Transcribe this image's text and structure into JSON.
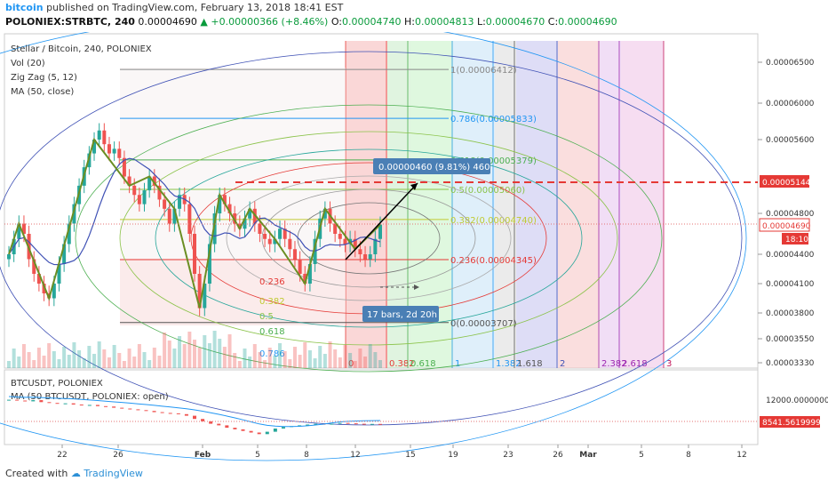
{
  "header": {
    "brand": "bitcoin",
    "published": "published on TradingView.com, February 13, 2018 18:41 EST",
    "symbol": "POLONIEX:STRBTC, 240",
    "price": "0.00004690",
    "change": "+0.00000366 (+8.46%)",
    "o_label": "O:",
    "o": "0.00004740",
    "h_label": "H:",
    "h": "0.00004813",
    "l_label": "L:",
    "l": "0.00004670",
    "c_label": "C:",
    "c": "0.00004690"
  },
  "legend": [
    "Stellar / Bitcoin, 240, POLONIEX",
    "Vol (20)",
    "Zig Zag (5, 12)",
    "MA (50, close)"
  ],
  "lower_legend": [
    "BTCUSDT, POLONIEX",
    "MA (50 BTCUSDT, POLONIEX: open)"
  ],
  "footer": {
    "created": "Created with",
    "brand": "TradingView"
  },
  "colors": {
    "up": "#26a69a",
    "down": "#ef5350",
    "accent": "#2196f3",
    "dashed": "#e53935",
    "zigzag": "#6b8e23",
    "ma": "#3f51b5"
  },
  "chart_data": {
    "type": "candlestick",
    "symbol": "STRBTC",
    "x_ticks": [
      "22",
      "26",
      "Feb",
      "5",
      "8",
      "12",
      "15",
      "19",
      "23",
      "26",
      "Mar",
      "5",
      "8",
      "12"
    ],
    "y_ticks": [
      "0.00006500",
      "0.00006000",
      "0.00005600",
      "0.00004800",
      "0.00004400",
      "0.00004100",
      "0.00003800",
      "0.00003550",
      "0.00003330"
    ],
    "price_labels": {
      "dashed": "0.00005144",
      "current": "0.00004690",
      "countdown": "18:10"
    },
    "fib_retracement": [
      {
        "level": "1(0.00006412)"
      },
      {
        "level": "0.786(0.00005833)"
      },
      {
        "level": "0.618(0.00005379)"
      },
      {
        "level": "0.5(0.00005060)"
      },
      {
        "level": "0.382(0.00004740)"
      },
      {
        "level": "0.236(0.00004345)"
      },
      {
        "level": "0(0.00003707)"
      }
    ],
    "fib_circle_labels": [
      "0.236",
      "0.382",
      "0.5",
      "0.618",
      "0.786"
    ],
    "fib_time_zones": [
      "0",
      "0.382",
      "0.618",
      "1",
      "1.382",
      "1.618",
      "2",
      "2.382",
      "2.618",
      "3"
    ],
    "measure": {
      "price": "0.00000460 (9.81%) 460",
      "bars": "17 bars, 2d 20h"
    },
    "lower_y_ticks": [
      "12000.00000000"
    ],
    "lower_price_label": "8541.56199999",
    "close": [
      4.4,
      4.55,
      4.7,
      4.6,
      4.35,
      4.2,
      4.1,
      4.0,
      3.95,
      4.1,
      4.3,
      4.5,
      4.7,
      4.9,
      5.1,
      5.3,
      5.45,
      5.6,
      5.7,
      5.55,
      5.45,
      5.5,
      5.4,
      5.2,
      5.1,
      5.0,
      4.9,
      5.05,
      5.2,
      5.1,
      4.95,
      4.85,
      4.7,
      4.85,
      5.0,
      4.9,
      4.6,
      4.2,
      3.85,
      4.1,
      4.5,
      4.8,
      5.0,
      4.9,
      4.8,
      4.7,
      4.65,
      4.75,
      4.85,
      4.7,
      4.6,
      4.55,
      4.5,
      4.55,
      4.65,
      4.55,
      4.45,
      4.35,
      4.2,
      4.1,
      4.3,
      4.55,
      4.75,
      4.85,
      4.7,
      4.6,
      4.55,
      4.5,
      4.55,
      4.45,
      4.4,
      4.35,
      4.4,
      4.55,
      4.69
    ],
    "btc_close": [
      11.6,
      11.5,
      11.4,
      11.55,
      11.3,
      11.2,
      11.1,
      11.15,
      11.0,
      10.9,
      10.95,
      10.8,
      10.75,
      10.6,
      10.5,
      10.4,
      10.3,
      10.2,
      10.05,
      9.95,
      9.9,
      9.8,
      9.6,
      9.2,
      8.9,
      8.6,
      8.4,
      8.1,
      7.9,
      7.7,
      7.5,
      7.3,
      7.6,
      8.0,
      8.2,
      8.3,
      8.4,
      8.5,
      8.6,
      8.55,
      8.6,
      8.7,
      8.65,
      8.6,
      8.55,
      8.58,
      8.54
    ]
  }
}
